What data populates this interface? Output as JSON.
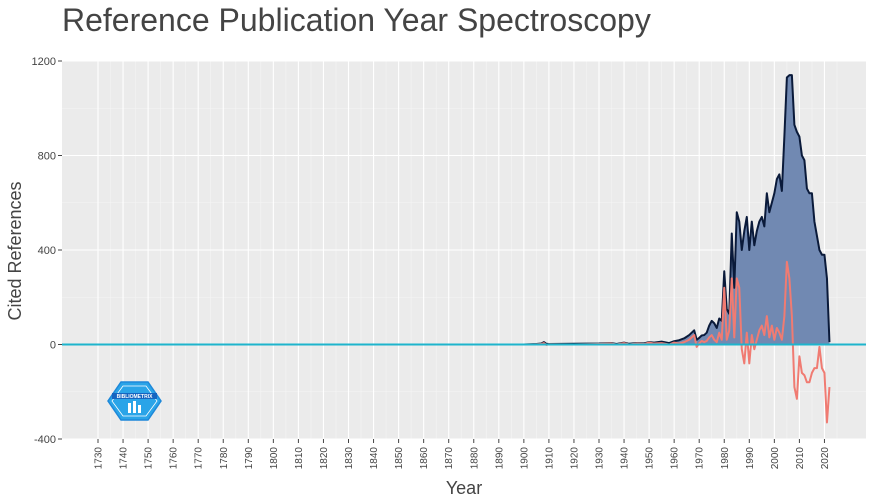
{
  "chart_data": {
    "type": "area",
    "title": "Reference Publication Year Spectroscopy",
    "xlabel": "Year",
    "ylabel": "Cited References",
    "xlim": [
      1730,
      2022
    ],
    "ylim": [
      -400,
      1200
    ],
    "yticks": [
      -400,
      0,
      400,
      800,
      1200
    ],
    "xticks": [
      1730,
      1740,
      1750,
      1760,
      1770,
      1780,
      1790,
      1800,
      1810,
      1820,
      1830,
      1840,
      1850,
      1860,
      1870,
      1880,
      1890,
      1900,
      1910,
      1920,
      1930,
      1940,
      1950,
      1960,
      1970,
      1980,
      1990,
      2000,
      2010,
      2020
    ],
    "grid": true,
    "background": "#ebebeb",
    "series": [
      {
        "color": "#0a1a3a",
        "fill": "#7189b2",
        "x": [
          1730,
          1900,
          1905,
          1907,
          1908,
          1909,
          1910,
          1920,
          1930,
          1935,
          1937,
          1940,
          1942,
          1945,
          1948,
          1950,
          1952,
          1955,
          1958,
          1960,
          1962,
          1964,
          1966,
          1968,
          1969,
          1970,
          1971,
          1972,
          1973,
          1974,
          1975,
          1976,
          1977,
          1978,
          1979,
          1980,
          1981,
          1982,
          1983,
          1984,
          1985,
          1986,
          1987,
          1988,
          1989,
          1990,
          1991,
          1992,
          1993,
          1994,
          1995,
          1996,
          1997,
          1998,
          1999,
          2000,
          2001,
          2002,
          2003,
          2004,
          2005,
          2006,
          2007,
          2008,
          2009,
          2010,
          2011,
          2012,
          2013,
          2014,
          2015,
          2016,
          2017,
          2018,
          2019,
          2020,
          2021,
          2022
        ],
        "values": [
          0,
          0,
          2,
          4,
          10,
          3,
          2,
          3,
          4,
          6,
          2,
          8,
          3,
          6,
          5,
          10,
          8,
          12,
          6,
          14,
          18,
          26,
          40,
          60,
          20,
          28,
          38,
          40,
          50,
          80,
          100,
          90,
          70,
          110,
          100,
          310,
          150,
          130,
          470,
          240,
          560,
          520,
          400,
          480,
          540,
          400,
          520,
          420,
          480,
          520,
          540,
          500,
          640,
          560,
          600,
          640,
          700,
          720,
          650,
          880,
          1130,
          1140,
          1140,
          930,
          900,
          880,
          800,
          780,
          660,
          640,
          640,
          520,
          460,
          400,
          380,
          380,
          280,
          10
        ]
      },
      {
        "color": "#f07b72",
        "x": [
          1730,
          1900,
          1905,
          1907,
          1908,
          1909,
          1910,
          1920,
          1930,
          1935,
          1937,
          1940,
          1942,
          1945,
          1948,
          1950,
          1952,
          1955,
          1958,
          1960,
          1962,
          1964,
          1966,
          1968,
          1969,
          1970,
          1971,
          1972,
          1973,
          1974,
          1975,
          1976,
          1977,
          1978,
          1979,
          1980,
          1981,
          1982,
          1983,
          1984,
          1985,
          1986,
          1987,
          1988,
          1989,
          1990,
          1991,
          1992,
          1993,
          1994,
          1995,
          1996,
          1997,
          1998,
          1999,
          2000,
          2001,
          2002,
          2003,
          2004,
          2005,
          2006,
          2007,
          2008,
          2009,
          2010,
          2011,
          2012,
          2013,
          2014,
          2015,
          2016,
          2017,
          2018,
          2019,
          2020,
          2021,
          2022
        ],
        "values": [
          0,
          0,
          1,
          2,
          6,
          -2,
          1,
          0,
          2,
          4,
          0,
          6,
          0,
          4,
          2,
          8,
          4,
          6,
          0,
          8,
          4,
          10,
          20,
          40,
          -10,
          5,
          15,
          10,
          15,
          30,
          40,
          20,
          10,
          50,
          20,
          240,
          20,
          60,
          280,
          30,
          280,
          240,
          -20,
          -80,
          50,
          -80,
          40,
          -20,
          20,
          60,
          80,
          40,
          120,
          30,
          80,
          20,
          70,
          50,
          20,
          120,
          350,
          280,
          120,
          -180,
          -230,
          -50,
          -120,
          -130,
          -160,
          -160,
          -120,
          -100,
          -100,
          -10,
          -100,
          -120,
          -330,
          -180
        ]
      }
    ],
    "zero_line_color": "#1eb4cc"
  },
  "logo": {
    "text": "BIBLIOMETRIX",
    "color": "#1e88d9"
  }
}
